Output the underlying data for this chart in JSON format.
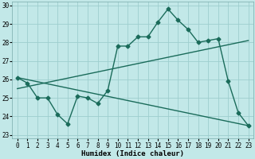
{
  "xlabel": "Humidex (Indice chaleur)",
  "bg_color": "#c2e8e8",
  "grid_color": "#9ecece",
  "line_color": "#1a6b5a",
  "xlim": [
    -0.5,
    23.5
  ],
  "ylim": [
    22.8,
    30.2
  ],
  "yticks": [
    23,
    24,
    25,
    26,
    27,
    28,
    29,
    30
  ],
  "xticks": [
    0,
    1,
    2,
    3,
    4,
    5,
    6,
    7,
    8,
    9,
    10,
    11,
    12,
    13,
    14,
    15,
    16,
    17,
    18,
    19,
    20,
    21,
    22,
    23
  ],
  "series1_x": [
    0,
    1,
    2,
    3,
    4,
    5,
    6,
    7,
    8,
    9,
    10,
    11,
    12,
    13,
    14,
    15,
    16,
    17,
    18,
    19,
    20,
    21,
    22,
    23
  ],
  "series1_y": [
    26.1,
    25.8,
    25.0,
    25.0,
    24.1,
    23.6,
    25.1,
    25.0,
    24.7,
    25.4,
    27.8,
    27.8,
    28.3,
    28.3,
    29.1,
    29.8,
    29.2,
    28.7,
    28.0,
    28.1,
    28.2,
    25.9,
    24.2,
    23.5
  ],
  "series2_x": [
    0,
    23
  ],
  "series2_y": [
    25.5,
    28.1
  ],
  "series3_x": [
    0,
    23
  ],
  "series3_y": [
    26.1,
    23.5
  ],
  "tick_fontsize": 5.5,
  "xlabel_fontsize": 6.5,
  "marker_size": 2.5,
  "linewidth": 1.0
}
